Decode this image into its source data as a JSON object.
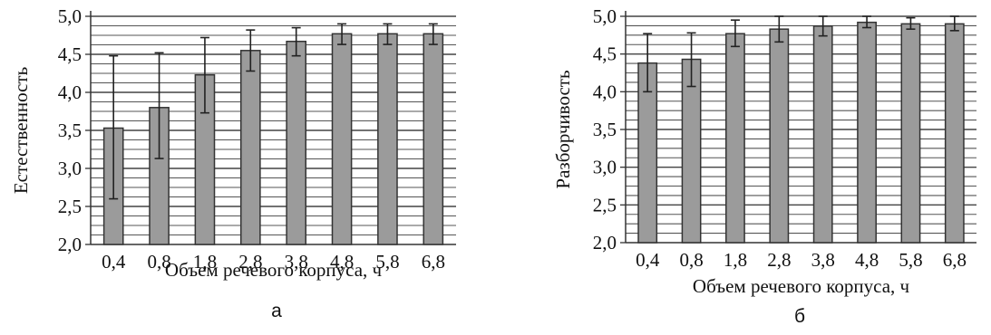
{
  "chart_data": [
    {
      "type": "bar",
      "panel_label": "а",
      "xlabel": "Объем речевого корпуса, ч",
      "ylabel": "Естественность",
      "categories": [
        "0,4",
        "0,8",
        "1,8",
        "2,8",
        "3,8",
        "4,8",
        "5,8",
        "6,8"
      ],
      "values": [
        3.53,
        3.8,
        4.23,
        4.55,
        4.67,
        4.77,
        4.77,
        4.77
      ],
      "error_low": [
        2.6,
        3.13,
        3.73,
        4.28,
        4.48,
        4.63,
        4.63,
        4.63
      ],
      "error_high": [
        4.48,
        4.52,
        4.72,
        4.82,
        4.85,
        4.9,
        4.9,
        4.9
      ],
      "ylim": [
        2.0,
        5.0
      ],
      "y_ticks": [
        "2,0",
        "2,5",
        "3,0",
        "3,5",
        "4,0",
        "4,5",
        "5,0"
      ],
      "grid": true,
      "bar_color": "#9b9b9b"
    },
    {
      "type": "bar",
      "panel_label": "б",
      "xlabel": "Объем речевого корпуса, ч",
      "ylabel": "Разборчивость",
      "categories": [
        "0,4",
        "0,8",
        "1,8",
        "2,8",
        "3,8",
        "4,8",
        "5,8",
        "6,8"
      ],
      "values": [
        4.38,
        4.43,
        4.77,
        4.83,
        4.87,
        4.92,
        4.9,
        4.9
      ],
      "error_low": [
        4.0,
        4.07,
        4.6,
        4.66,
        4.74,
        4.85,
        4.83,
        4.81
      ],
      "error_high": [
        4.77,
        4.78,
        4.95,
        5.0,
        5.0,
        5.0,
        4.98,
        5.0
      ],
      "ylim": [
        2.0,
        5.0
      ],
      "y_ticks": [
        "2,0",
        "2,5",
        "3,0",
        "3,5",
        "4,0",
        "4,5",
        "5,0"
      ],
      "grid": true,
      "bar_color": "#9b9b9b"
    }
  ]
}
